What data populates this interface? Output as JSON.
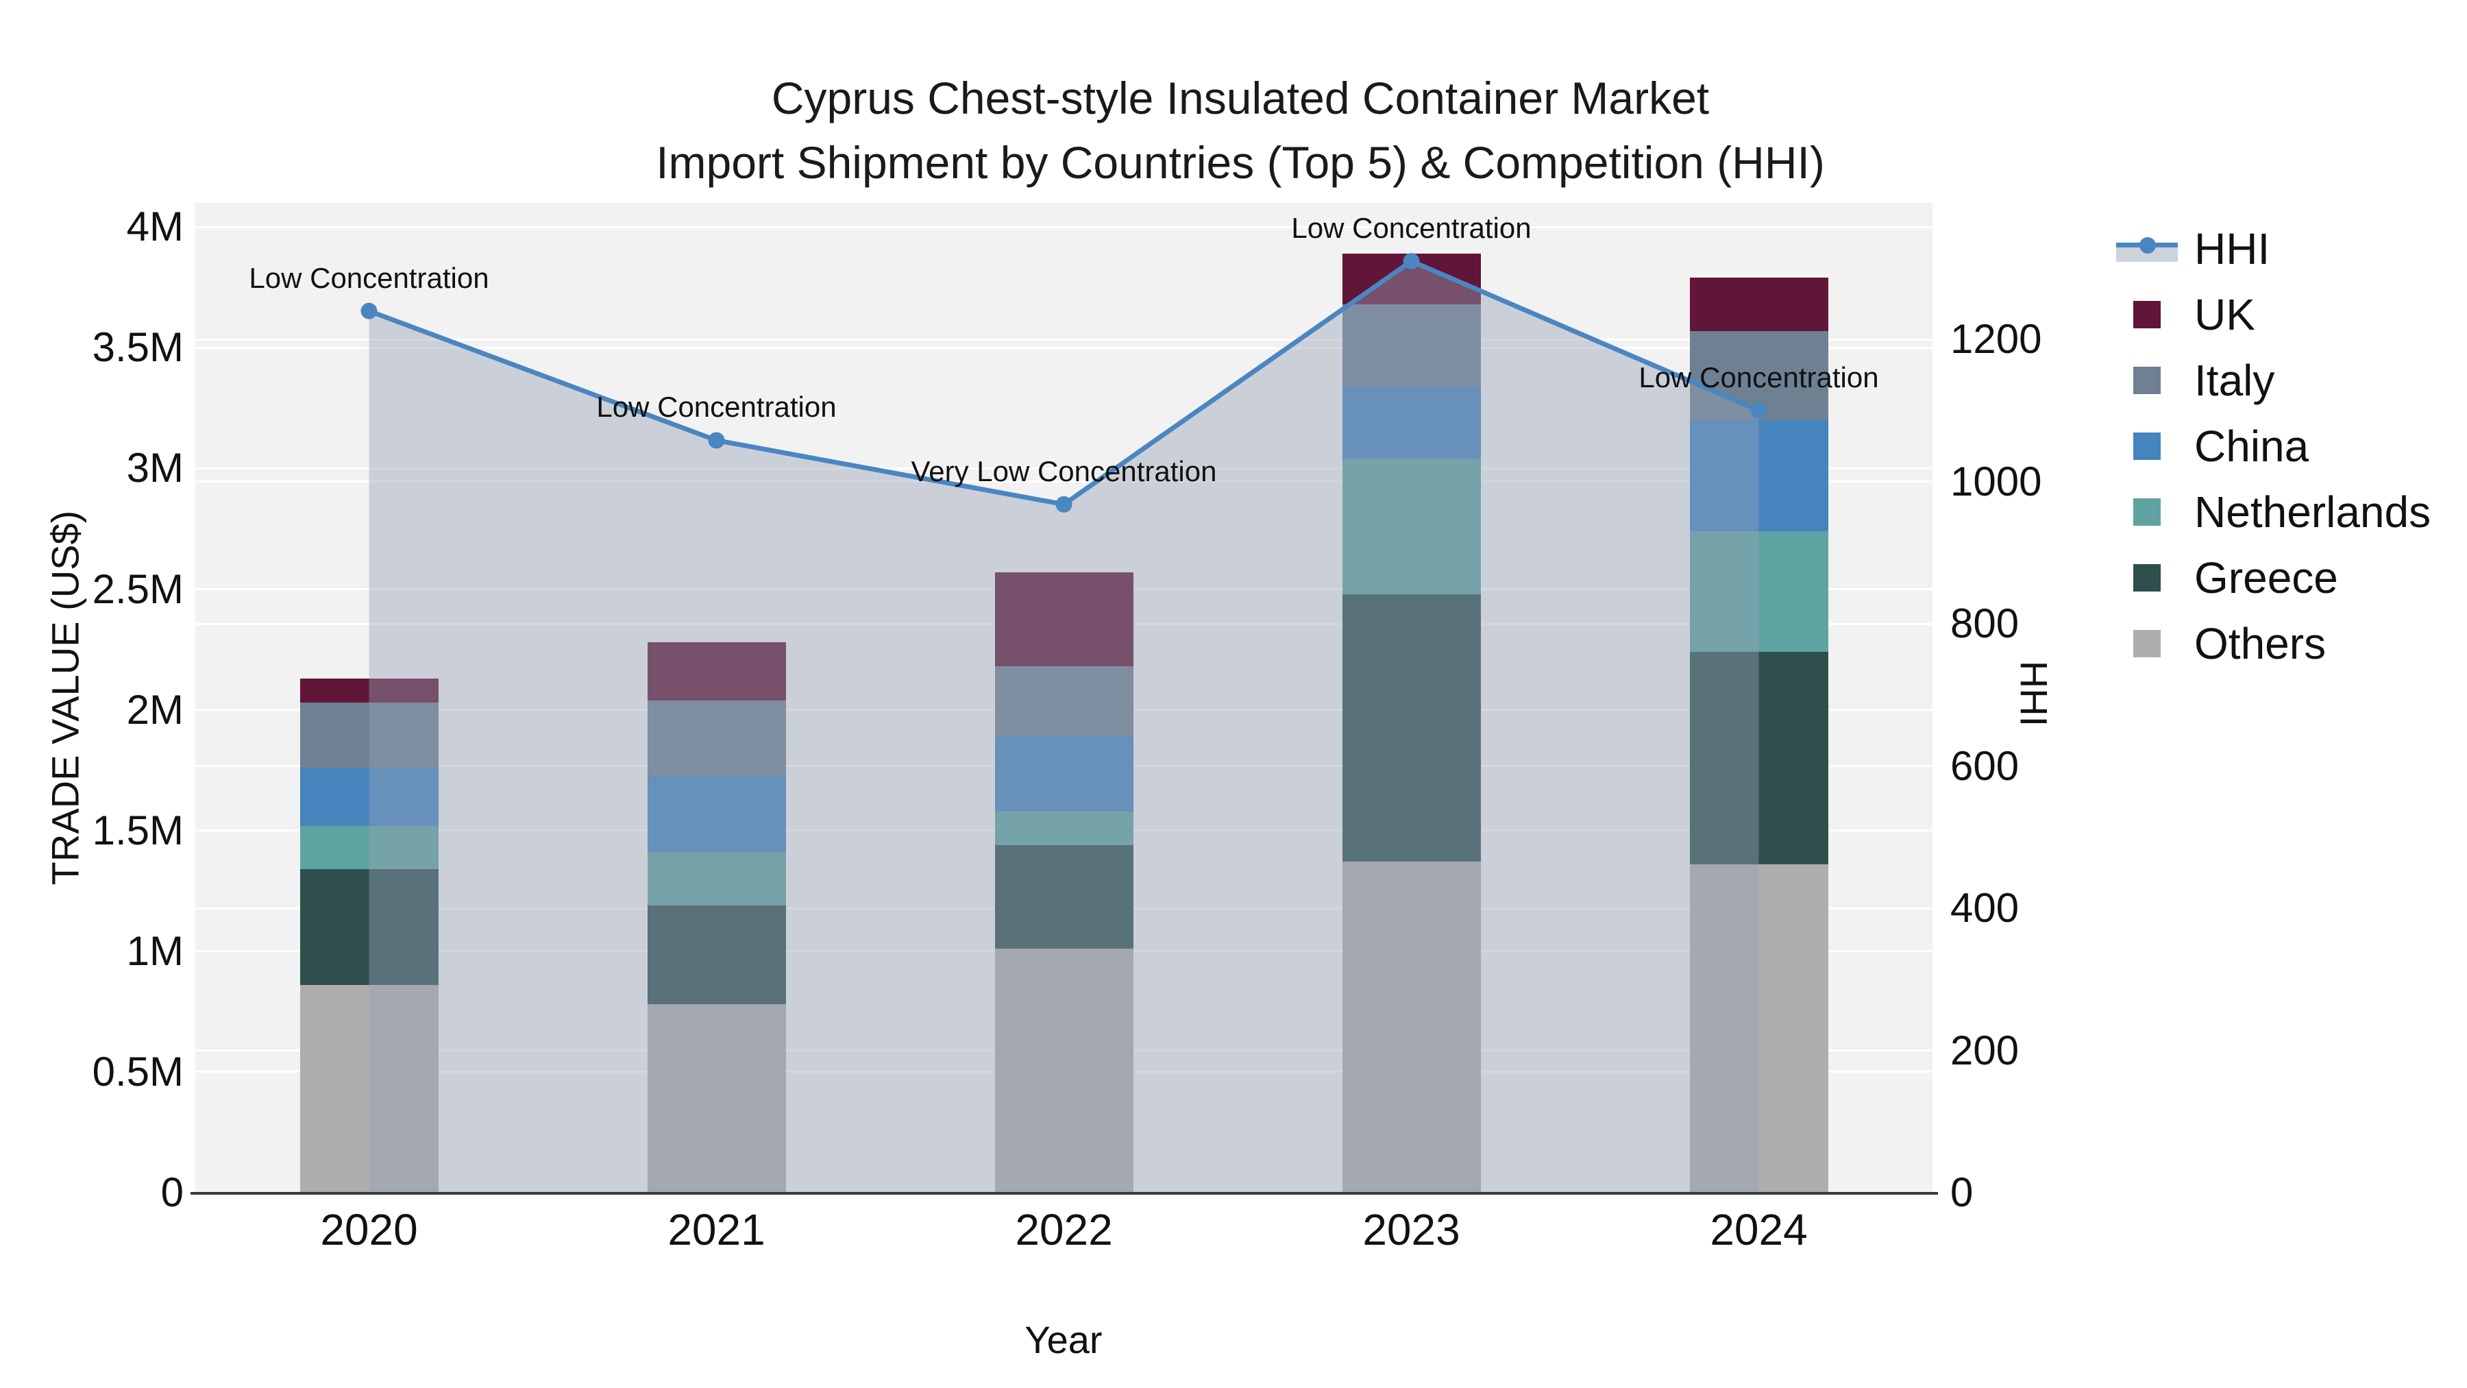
{
  "title": {
    "line1": "Cyprus Chest-style Insulated Container Market",
    "line2": "Import Shipment by Countries (Top 5) & Competition (HHI)"
  },
  "axes": {
    "y_left": {
      "title": "TRADE VALUE (US$)",
      "tick_labels": [
        "0",
        "0.5M",
        "1M",
        "1.5M",
        "2M",
        "2.5M",
        "3M",
        "3.5M",
        "4M"
      ],
      "tick_values_musd": [
        0,
        0.5,
        1,
        1.5,
        2,
        2.5,
        3,
        3.5,
        4
      ],
      "range_musd": [
        0,
        4.1
      ]
    },
    "y_right": {
      "title": "HHI",
      "tick_labels": [
        "0",
        "200",
        "400",
        "600",
        "800",
        "1000",
        "1200"
      ],
      "tick_values": [
        0,
        200,
        400,
        600,
        800,
        1000,
        1200
      ],
      "range": [
        0,
        1392
      ]
    },
    "x": {
      "title": "Year",
      "tick_labels": [
        "2020",
        "2021",
        "2022",
        "2023",
        "2024"
      ]
    }
  },
  "legend": {
    "items": [
      {
        "label": "HHI",
        "kind": "line"
      },
      {
        "label": "UK",
        "kind": "swatch",
        "color": "#611538"
      },
      {
        "label": "Italy",
        "kind": "swatch",
        "color": "#6f8093"
      },
      {
        "label": "China",
        "kind": "swatch",
        "color": "#4684bd"
      },
      {
        "label": "Netherlands",
        "kind": "swatch",
        "color": "#5fa3a3"
      },
      {
        "label": "Greece",
        "kind": "swatch",
        "color": "#2e4f4c"
      },
      {
        "label": "Others",
        "kind": "swatch",
        "color": "#aeaeae"
      }
    ]
  },
  "colors": {
    "plot_background": "#f2f2f2",
    "gridline": "#ffffff",
    "axis_line": "#3a3a3a",
    "hhi_line": "#4a86c2",
    "hhi_area_fill": "rgba(151,162,181,0.42)",
    "hhi_legend_band": "#ccd3dc",
    "text": "#111111"
  },
  "chart_data": {
    "type": "bar+line",
    "categories": [
      "2020",
      "2021",
      "2022",
      "2023",
      "2024"
    ],
    "bar_stack_order_bottom_to_top": [
      "Others",
      "Greece",
      "Netherlands",
      "China",
      "Italy",
      "UK"
    ],
    "series": [
      {
        "name": "Others",
        "color": "#aeaeae",
        "values_musd": [
          0.86,
          0.78,
          1.01,
          1.37,
          1.36
        ]
      },
      {
        "name": "Greece",
        "color": "#2e4f4c",
        "values_musd": [
          0.48,
          0.41,
          0.43,
          1.11,
          0.88
        ]
      },
      {
        "name": "Netherlands",
        "color": "#5fa3a3",
        "values_musd": [
          0.18,
          0.22,
          0.14,
          0.56,
          0.5
        ]
      },
      {
        "name": "China",
        "color": "#4684bd",
        "values_musd": [
          0.24,
          0.32,
          0.31,
          0.3,
          0.46
        ]
      },
      {
        "name": "Italy",
        "color": "#6f8093",
        "values_musd": [
          0.27,
          0.31,
          0.29,
          0.34,
          0.37
        ]
      },
      {
        "name": "UK",
        "color": "#611538",
        "values_musd": [
          0.1,
          0.24,
          0.39,
          0.21,
          0.22
        ]
      }
    ],
    "stack_totals_musd": [
      2.13,
      2.28,
      2.57,
      3.89,
      3.79
    ],
    "line_series": {
      "name": "HHI",
      "axis": "right",
      "values": [
        1240,
        1058,
        968,
        1310,
        1100
      ]
    },
    "annotations": [
      {
        "category": "2020",
        "text": "Low Concentration"
      },
      {
        "category": "2021",
        "text": "Low Concentration"
      },
      {
        "category": "2022",
        "text": "Very Low Concentration"
      },
      {
        "category": "2023",
        "text": "Low Concentration"
      },
      {
        "category": "2024",
        "text": "Low Concentration"
      }
    ],
    "title": "Cyprus Chest-style Insulated Container Market Import Shipment by Countries (Top 5) & Competition (HHI)",
    "xlabel": "Year",
    "ylabel_left": "TRADE VALUE (US$)",
    "ylabel_right": "HHI",
    "ylim_left_musd": [
      0,
      4.1
    ],
    "ylim_right": [
      0,
      1392
    ],
    "grid": true,
    "legend_position": "right"
  }
}
